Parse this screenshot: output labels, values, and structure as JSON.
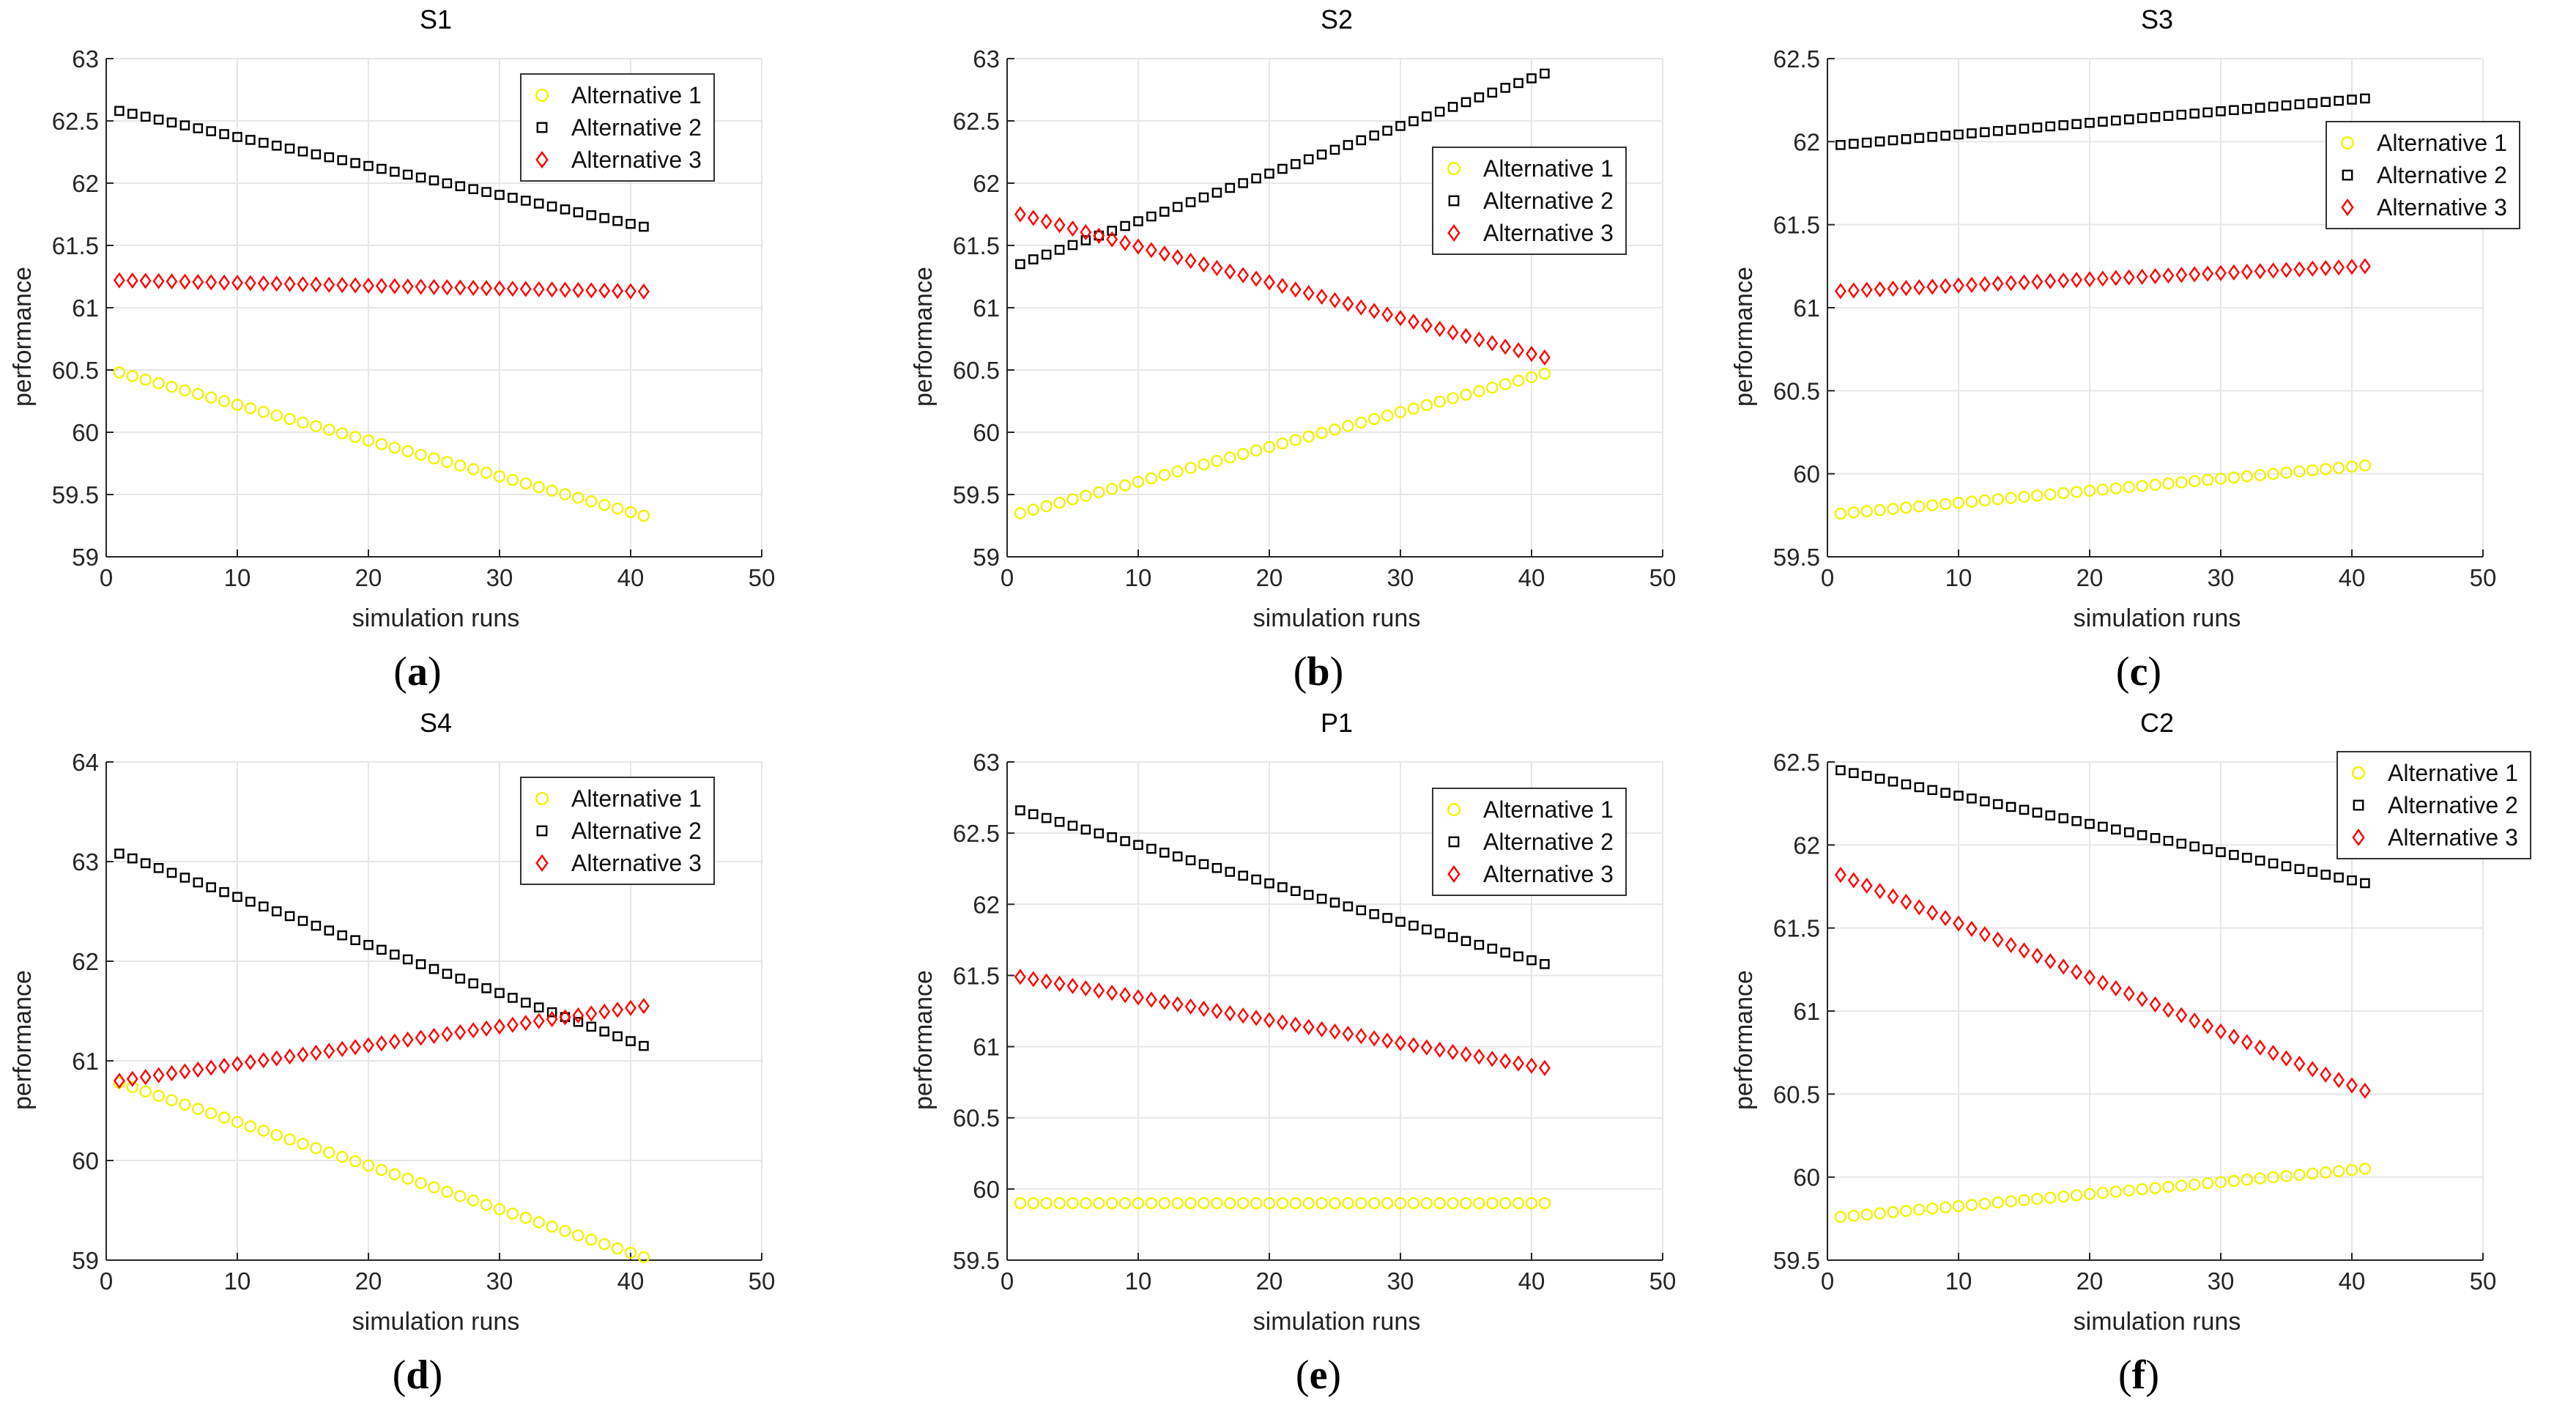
{
  "series_names": [
    "Alternative 1",
    "Alternative 2",
    "Alternative 3"
  ],
  "colors": {
    "alt1": "#f2f200",
    "alt2": "#000000",
    "alt3": "#ff0000",
    "grid": "#e6e6e6",
    "axis": "#262626"
  },
  "marker_icons": [
    "circle-marker-icon",
    "square-marker-icon",
    "diamond-marker-icon"
  ],
  "chart_data": [
    {
      "id": "a",
      "caption_letter": "a",
      "type": "scatter",
      "title": "S1",
      "xlabel": "simulation runs",
      "ylabel": "performance",
      "xlim": [
        0,
        50
      ],
      "ylim": [
        59,
        63
      ],
      "xticks": [
        0,
        10,
        20,
        30,
        40,
        50
      ],
      "yticks": [
        59,
        59.5,
        60,
        60.5,
        61,
        61.5,
        62,
        62.5,
        63
      ],
      "ytick_labels": [
        "59",
        "59.5",
        "60",
        "60.5",
        "61",
        "61.5",
        "62",
        "62.5",
        "63"
      ],
      "grid": true,
      "legend": "top-right",
      "x_start": 1,
      "x_end": 41,
      "series": [
        {
          "name": "Alternative 1",
          "marker": "circle",
          "start": 60.48,
          "end": 59.33
        },
        {
          "name": "Alternative 2",
          "marker": "square",
          "start": 62.58,
          "end": 61.65
        },
        {
          "name": "Alternative 3",
          "marker": "diamond",
          "start": 61.22,
          "end": 61.13
        }
      ]
    },
    {
      "id": "b",
      "caption_letter": "b",
      "type": "scatter",
      "title": "S2",
      "xlabel": "simulation runs",
      "ylabel": "performance",
      "xlim": [
        0,
        50
      ],
      "ylim": [
        59,
        63
      ],
      "xticks": [
        0,
        10,
        20,
        30,
        40,
        50
      ],
      "yticks": [
        59,
        59.5,
        60,
        60.5,
        61,
        61.5,
        62,
        62.5,
        63
      ],
      "ytick_labels": [
        "59",
        "59.5",
        "60",
        "60.5",
        "61",
        "61.5",
        "62",
        "62.5",
        "63"
      ],
      "grid": true,
      "legend": "right",
      "x_start": 1,
      "x_end": 41,
      "series": [
        {
          "name": "Alternative 1",
          "marker": "circle",
          "start": 59.35,
          "end": 60.47
        },
        {
          "name": "Alternative 2",
          "marker": "square",
          "start": 61.35,
          "end": 62.88
        },
        {
          "name": "Alternative 3",
          "marker": "diamond",
          "start": 61.75,
          "end": 60.6
        }
      ]
    },
    {
      "id": "c",
      "caption_letter": "c",
      "type": "scatter",
      "title": "S3",
      "xlabel": "simulation runs",
      "ylabel": "performance",
      "xlim": [
        0,
        50
      ],
      "ylim": [
        59.5,
        62.5
      ],
      "xticks": [
        0,
        10,
        20,
        30,
        40,
        50
      ],
      "yticks": [
        59.5,
        60,
        60.5,
        61,
        61.5,
        62,
        62.5
      ],
      "ytick_labels": [
        "59.5",
        "60",
        "60.5",
        "61",
        "61.5",
        "62",
        "62.5"
      ],
      "grid": true,
      "legend": "top-right",
      "x_start": 1,
      "x_end": 41,
      "series": [
        {
          "name": "Alternative 1",
          "marker": "circle",
          "start": 59.76,
          "end": 60.05
        },
        {
          "name": "Alternative 2",
          "marker": "square",
          "start": 61.98,
          "end": 62.26
        },
        {
          "name": "Alternative 3",
          "marker": "diamond",
          "start": 61.1,
          "end": 61.25
        }
      ]
    },
    {
      "id": "d",
      "caption_letter": "d",
      "type": "scatter",
      "title": "S4",
      "xlabel": "simulation runs",
      "ylabel": "performance",
      "xlim": [
        0,
        50
      ],
      "ylim": [
        59,
        64
      ],
      "xticks": [
        0,
        10,
        20,
        30,
        40,
        50
      ],
      "yticks": [
        59,
        60,
        61,
        62,
        63,
        64
      ],
      "ytick_labels": [
        "59",
        "60",
        "61",
        "62",
        "63",
        "64"
      ],
      "grid": true,
      "legend": "top-right",
      "x_start": 1,
      "x_end": 41,
      "series": [
        {
          "name": "Alternative 1",
          "marker": "circle",
          "start": 60.78,
          "end": 59.03
        },
        {
          "name": "Alternative 2",
          "marker": "square",
          "start": 63.08,
          "end": 61.15
        },
        {
          "name": "Alternative 3",
          "marker": "diamond",
          "start": 60.8,
          "end": 61.55
        }
      ]
    },
    {
      "id": "e",
      "caption_letter": "e",
      "type": "scatter",
      "title": "P1",
      "xlabel": "simulation runs",
      "ylabel": "performance",
      "xlim": [
        0,
        50
      ],
      "ylim": [
        59.5,
        63
      ],
      "xticks": [
        0,
        10,
        20,
        30,
        40,
        50
      ],
      "yticks": [
        59.5,
        60,
        60.5,
        61,
        61.5,
        62,
        62.5,
        63
      ],
      "ytick_labels": [
        "59.5",
        "60",
        "60.5",
        "61",
        "61.5",
        "62",
        "62.5",
        "63"
      ],
      "grid": true,
      "legend": "top-right",
      "x_start": 1,
      "x_end": 41,
      "series": [
        {
          "name": "Alternative 1",
          "marker": "circle",
          "start": 59.9,
          "end": 59.9
        },
        {
          "name": "Alternative 2",
          "marker": "square",
          "start": 62.66,
          "end": 61.58
        },
        {
          "name": "Alternative 3",
          "marker": "diamond",
          "start": 61.49,
          "end": 60.85
        }
      ]
    },
    {
      "id": "f",
      "caption_letter": "f",
      "type": "scatter",
      "title": "C2",
      "xlabel": "simulation runs",
      "ylabel": "performance",
      "xlim": [
        0,
        50
      ],
      "ylim": [
        59.5,
        62.5
      ],
      "xticks": [
        0,
        10,
        20,
        30,
        40,
        50
      ],
      "yticks": [
        59.5,
        60,
        60.5,
        61,
        61.5,
        62,
        62.5
      ],
      "ytick_labels": [
        "59.5",
        "60",
        "60.5",
        "61",
        "61.5",
        "62",
        "62.5"
      ],
      "grid": true,
      "legend": "top-right",
      "x_start": 1,
      "x_end": 41,
      "series": [
        {
          "name": "Alternative 1",
          "marker": "circle",
          "start": 59.76,
          "end": 60.05
        },
        {
          "name": "Alternative 2",
          "marker": "square",
          "start": 62.45,
          "end": 61.77
        },
        {
          "name": "Alternative 3",
          "marker": "diamond",
          "start": 61.82,
          "end": 60.52
        }
      ]
    }
  ]
}
